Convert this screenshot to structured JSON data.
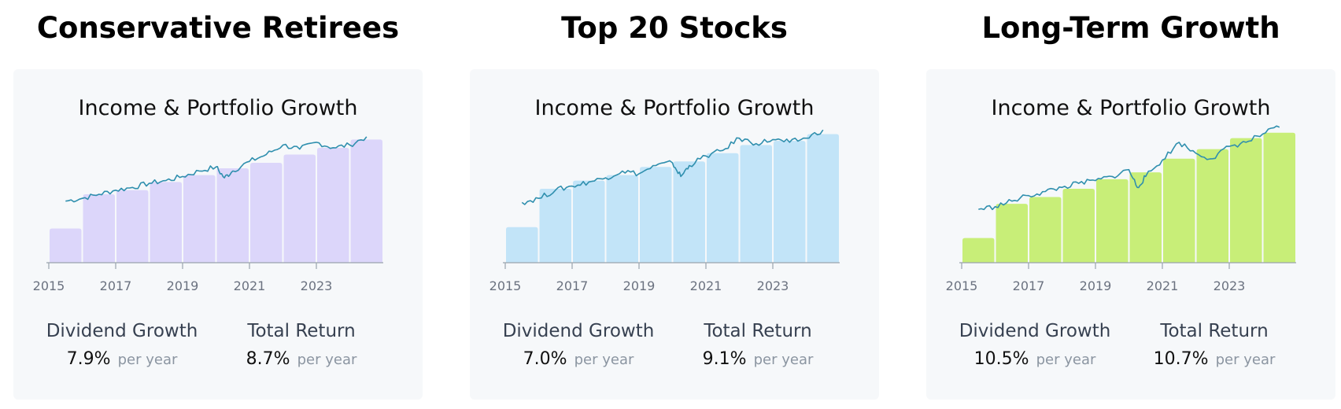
{
  "panels": [
    {
      "title": "Conservative Retirees",
      "chart_title": "Income & Portfolio Growth",
      "bar_color": "#dcd6fa",
      "line_color": "#2f8fae",
      "stats": [
        {
          "label": "Dividend Growth",
          "value": "7.9%",
          "unit": "per year"
        },
        {
          "label": "Total Return",
          "value": "8.7%",
          "unit": "per year"
        }
      ]
    },
    {
      "title": "Top 20 Stocks",
      "chart_title": "Income & Portfolio Growth",
      "bar_color": "#c2e4f8",
      "line_color": "#2f8fae",
      "stats": [
        {
          "label": "Dividend Growth",
          "value": "7.0%",
          "unit": "per year"
        },
        {
          "label": "Total Return",
          "value": "9.1%",
          "unit": "per year"
        }
      ]
    },
    {
      "title": "Long-Term Growth",
      "chart_title": "Income & Portfolio Growth",
      "bar_color": "#c8ee78",
      "line_color": "#2f8fae",
      "stats": [
        {
          "label": "Dividend Growth",
          "value": "10.5%",
          "unit": "per year"
        },
        {
          "label": "Total Return",
          "value": "10.7%",
          "unit": "per year"
        }
      ]
    }
  ],
  "chart_data": [
    {
      "type": "bar",
      "title": "Income & Portfolio Growth",
      "xlabel": "",
      "ylabel": "",
      "x_ticks": [
        "2015",
        "2017",
        "2019",
        "2021",
        "2023"
      ],
      "categories": [
        "2015",
        "2016",
        "2017",
        "2018",
        "2019",
        "2020",
        "2021",
        "2022",
        "2023",
        "2024"
      ],
      "ylim": [
        0,
        100
      ],
      "series": [
        {
          "type": "bar",
          "values": [
            25,
            50,
            53,
            59,
            64,
            69,
            73,
            79,
            84,
            90
          ]
        },
        {
          "type": "line",
          "points": [
            [
              2015.5,
              45
            ],
            [
              2016.0,
              47
            ],
            [
              2016.5,
              50
            ],
            [
              2017.0,
              53
            ],
            [
              2017.5,
              55
            ],
            [
              2018.0,
              58
            ],
            [
              2018.5,
              60
            ],
            [
              2019.0,
              63
            ],
            [
              2019.5,
              67
            ],
            [
              2020.0,
              70
            ],
            [
              2020.25,
              62
            ],
            [
              2020.5,
              67
            ],
            [
              2021.0,
              74
            ],
            [
              2021.5,
              79
            ],
            [
              2022.0,
              86
            ],
            [
              2022.5,
              83
            ],
            [
              2023.0,
              88
            ],
            [
              2023.5,
              84
            ],
            [
              2024.0,
              86
            ],
            [
              2024.5,
              92
            ]
          ]
        }
      ]
    },
    {
      "type": "bar",
      "title": "Income & Portfolio Growth",
      "xlabel": "",
      "ylabel": "",
      "x_ticks": [
        "2015",
        "2017",
        "2019",
        "2021",
        "2023"
      ],
      "categories": [
        "2015",
        "2016",
        "2017",
        "2018",
        "2019",
        "2020",
        "2021",
        "2022",
        "2023",
        "2024"
      ],
      "ylim": [
        0,
        100
      ],
      "series": [
        {
          "type": "bar",
          "values": [
            26,
            54,
            60,
            64,
            70,
            74,
            80,
            86,
            89,
            94
          ]
        },
        {
          "type": "line",
          "points": [
            [
              2015.5,
              44
            ],
            [
              2016.0,
              47
            ],
            [
              2016.5,
              53
            ],
            [
              2017.0,
              56
            ],
            [
              2017.5,
              59
            ],
            [
              2018.0,
              62
            ],
            [
              2018.5,
              67
            ],
            [
              2019.0,
              65
            ],
            [
              2019.5,
              71
            ],
            [
              2020.0,
              73
            ],
            [
              2020.25,
              63
            ],
            [
              2020.5,
              71
            ],
            [
              2021.0,
              78
            ],
            [
              2021.5,
              82
            ],
            [
              2022.0,
              91
            ],
            [
              2022.5,
              87
            ],
            [
              2023.0,
              90
            ],
            [
              2023.5,
              88
            ],
            [
              2024.0,
              91
            ],
            [
              2024.5,
              97
            ]
          ]
        }
      ]
    },
    {
      "type": "bar",
      "title": "Income & Portfolio Growth",
      "xlabel": "",
      "ylabel": "",
      "x_ticks": [
        "2015",
        "2017",
        "2019",
        "2021",
        "2023"
      ],
      "categories": [
        "2015",
        "2016",
        "2017",
        "2018",
        "2019",
        "2020",
        "2021",
        "2022",
        "2023",
        "2024"
      ],
      "ylim": [
        0,
        100
      ],
      "series": [
        {
          "type": "bar",
          "values": [
            18,
            43,
            48,
            54,
            61,
            66,
            76,
            83,
            91,
            95
          ]
        },
        {
          "type": "line",
          "points": [
            [
              2015.5,
              39
            ],
            [
              2016.0,
              41
            ],
            [
              2016.5,
              45
            ],
            [
              2017.0,
              49
            ],
            [
              2017.5,
              52
            ],
            [
              2018.0,
              55
            ],
            [
              2018.5,
              58
            ],
            [
              2019.0,
              60
            ],
            [
              2019.5,
              63
            ],
            [
              2020.0,
              68
            ],
            [
              2020.25,
              55
            ],
            [
              2020.5,
              63
            ],
            [
              2021.0,
              75
            ],
            [
              2021.5,
              88
            ],
            [
              2022.0,
              80
            ],
            [
              2022.5,
              76
            ],
            [
              2023.0,
              85
            ],
            [
              2023.5,
              88
            ],
            [
              2024.0,
              94
            ],
            [
              2024.5,
              99
            ]
          ]
        }
      ]
    }
  ]
}
